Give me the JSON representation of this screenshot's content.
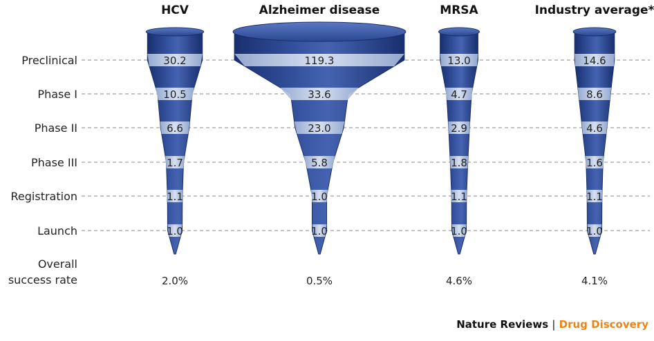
{
  "chart_data": {
    "type": "funnel",
    "stages": [
      "Preclinical",
      "Phase I",
      "Phase II",
      "Phase III",
      "Registration",
      "Launch"
    ],
    "summary_label": [
      "Overall",
      "success rate"
    ],
    "series": [
      {
        "name": "HCV",
        "values": [
          30.2,
          10.5,
          6.6,
          1.7,
          1.1,
          1.0
        ],
        "success_rate": "2.0%"
      },
      {
        "name": "Alzheimer disease",
        "values": [
          119.3,
          33.6,
          23.0,
          5.8,
          1.0,
          1.0
        ],
        "success_rate": "0.5%"
      },
      {
        "name": "MRSA",
        "values": [
          13.0,
          4.7,
          2.9,
          1.8,
          1.1,
          1.0
        ],
        "success_rate": "4.6%"
      },
      {
        "name": "Industry average*",
        "values": [
          14.6,
          8.6,
          4.6,
          1.6,
          1.1,
          1.0
        ],
        "success_rate": "4.1%"
      }
    ],
    "grid": true
  },
  "credit": {
    "journal": "Nature Reviews",
    "separator": "|",
    "subtitle": "Drug Discovery"
  },
  "colors": {
    "funnel_dark": "#27438c",
    "funnel_light": "#c9d6ea",
    "credit_accent": "#e8861a"
  }
}
